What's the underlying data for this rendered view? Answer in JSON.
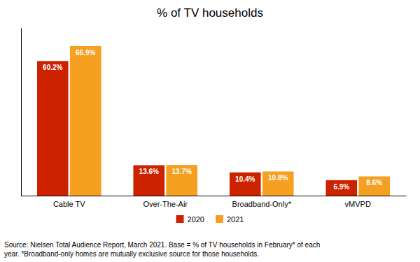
{
  "chart_data": {
    "type": "bar",
    "title": "% of TV households",
    "categories": [
      "Cable TV",
      "Over-The-Air",
      "Broadband-Only*",
      "vMVPD"
    ],
    "series": [
      {
        "name": "2020",
        "color": "#cc2200",
        "values": [
          60.2,
          13.6,
          10.4,
          6.9
        ],
        "value_labels": [
          "60.2%",
          "13.6%",
          "10.4%",
          "6.9%"
        ]
      },
      {
        "name": "2021",
        "color": "#f5a020",
        "values": [
          66.9,
          13.7,
          10.8,
          8.6
        ],
        "value_labels": [
          "66.9%",
          "13.7%",
          "10.8%",
          "8.6%"
        ]
      }
    ],
    "ylim": [
      0,
      75
    ],
    "yticks": [],
    "grid": false,
    "tick_labels": "x",
    "data_labels": true,
    "legend": "bottom",
    "annotations": [
      "Source: Nielsen Total Audience Report, March 2021. Base = % of TV households in February* of each",
      "year. *Broadband-only homes are mutually exclusive source for those households."
    ]
  }
}
